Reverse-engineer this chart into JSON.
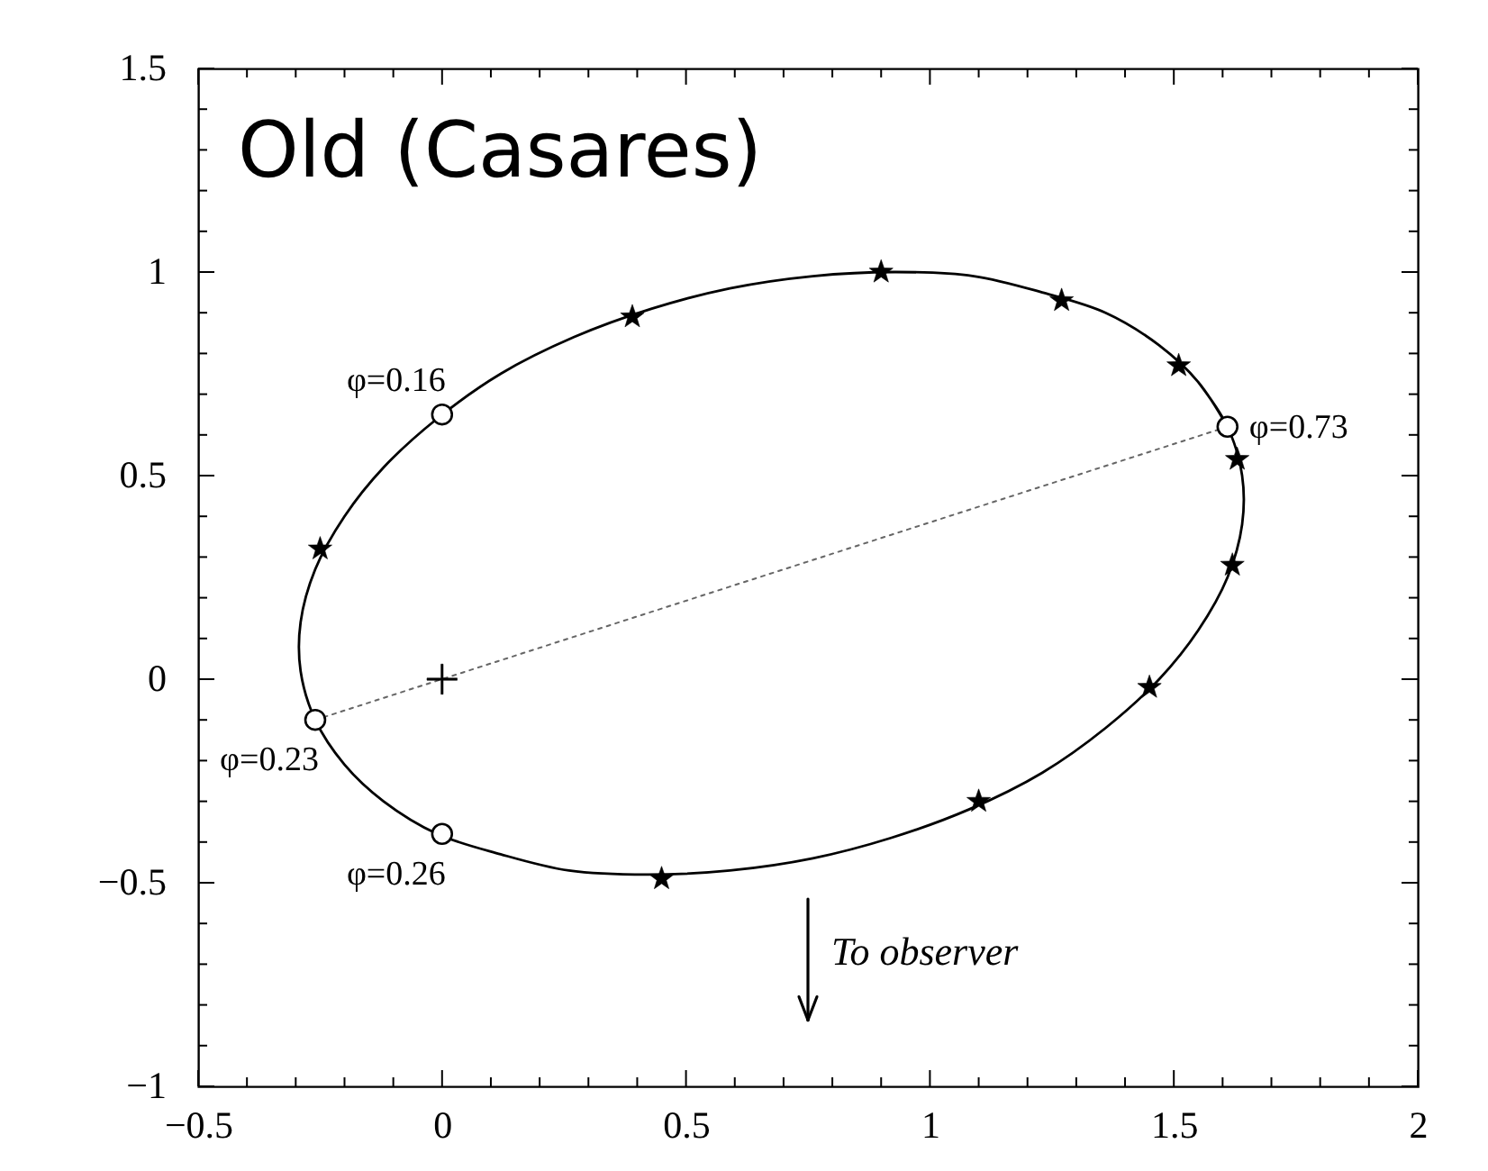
{
  "chart_data": {
    "type": "line",
    "title": "Old (Casares)",
    "xlim": [
      -0.5,
      2
    ],
    "ylim": [
      -1,
      1.5
    ],
    "xticks": [
      -0.5,
      {
        "value": -0.4,
        "label": null
      },
      {
        "value": -0.3,
        "label": null
      },
      {
        "value": -0.2,
        "label": null
      },
      {
        "value": -0.1,
        "label": null
      },
      0,
      {
        "value": 0.1,
        "label": null
      },
      {
        "value": 0.2,
        "label": null
      },
      {
        "value": 0.3,
        "label": null
      },
      {
        "value": 0.4,
        "label": null
      },
      0.5,
      {
        "value": 0.6,
        "label": null
      },
      {
        "value": 0.7,
        "label": null
      },
      {
        "value": 0.8,
        "label": null
      },
      {
        "value": 0.9,
        "label": null
      },
      1,
      {
        "value": 1.1,
        "label": null
      },
      {
        "value": 1.2,
        "label": null
      },
      {
        "value": 1.3,
        "label": null
      },
      {
        "value": 1.4,
        "label": null
      },
      1.5,
      {
        "value": 1.6,
        "label": null
      },
      {
        "value": 1.7,
        "label": null
      },
      {
        "value": 1.8,
        "label": null
      },
      {
        "value": 1.9,
        "label": null
      },
      2
    ],
    "yticks": [
      -1,
      {
        "value": -0.9,
        "label": null
      },
      {
        "value": -0.8,
        "label": null
      },
      {
        "value": -0.7,
        "label": null
      },
      {
        "value": -0.6,
        "label": null
      },
      -0.5,
      {
        "value": -0.4,
        "label": null
      },
      {
        "value": -0.3,
        "label": null
      },
      {
        "value": -0.2,
        "label": null
      },
      {
        "value": -0.1,
        "label": null
      },
      0,
      {
        "value": 0.1,
        "label": null
      },
      {
        "value": 0.2,
        "label": null
      },
      {
        "value": 0.3,
        "label": null
      },
      {
        "value": 0.4,
        "label": null
      },
      0.5,
      {
        "value": 0.6,
        "label": null
      },
      {
        "value": 0.7,
        "label": null
      },
      {
        "value": 0.8,
        "label": null
      },
      {
        "value": 0.9,
        "label": null
      },
      1,
      {
        "value": 1.1,
        "label": null
      },
      {
        "value": 1.2,
        "label": null
      },
      {
        "value": 1.3,
        "label": null
      },
      {
        "value": 1.4,
        "label": null
      },
      1.5
    ],
    "series": [
      {
        "color": "#000000",
        "line_style": "solid",
        "x": [
          1.61,
          1.55,
          1.47,
          1.36,
          1.23,
          1.09,
          0.93,
          0.76,
          0.59,
          0.43,
          0.27,
          0.12,
          -0.01,
          -0.12,
          -0.2,
          -0.26,
          -0.29,
          -0.29,
          -0.26,
          -0.2,
          -0.12,
          -0.01,
          0.12,
          0.26,
          0.42,
          0.59,
          0.76,
          0.92,
          1.08,
          1.23,
          1.36,
          1.47,
          1.55,
          1.61,
          1.64,
          1.64,
          1.61,
          1.55
        ],
        "values": [
          0.62,
          0.73,
          0.82,
          0.9,
          0.95,
          0.99,
          1.0,
          0.99,
          0.96,
          0.91,
          0.84,
          0.75,
          0.64,
          0.52,
          0.4,
          0.27,
          0.14,
          0.02,
          -0.1,
          -0.21,
          -0.3,
          -0.38,
          -0.43,
          -0.47,
          -0.48,
          -0.47,
          -0.44,
          -0.39,
          -0.32,
          -0.23,
          -0.12,
          0.0,
          0.12,
          0.25,
          0.38,
          0.5,
          0.62,
          0.73
        ]
      },
      {
        "type": "line",
        "color": "#666666",
        "line_style": "dotted",
        "x": [
          -0.26,
          1.61
        ],
        "values": [
          -0.1,
          0.62
        ]
      },
      {
        "type": "scatter",
        "color": "#000000",
        "marker": "star",
        "x": [
          -0.25,
          0.39,
          0.9,
          1.27,
          1.51,
          1.63,
          1.62,
          1.45,
          1.1,
          0.45
        ],
        "values": [
          0.32,
          0.89,
          1.0,
          0.93,
          0.77,
          0.54,
          0.28,
          -0.02,
          -0.3,
          -0.49
        ]
      },
      {
        "type": "scatter",
        "color": "#000000",
        "marker": "circle",
        "x": [
          0.0,
          1.61,
          -0.26,
          0.0
        ],
        "values": [
          0.65,
          0.62,
          -0.1,
          -0.38
        ]
      },
      {
        "type": "scatter",
        "color": "#000000",
        "marker": "cross",
        "x": [
          0
        ],
        "values": [
          0
        ]
      }
    ],
    "annotations": [
      {
        "text": "φ=0.16",
        "x": 0.0,
        "y": 0.65
      },
      {
        "text": "φ=0.73",
        "x": 1.61,
        "y": 0.62
      },
      {
        "text": "φ=0.23",
        "x": -0.26,
        "y": -0.1
      },
      {
        "text": "φ=0.26",
        "x": 0.0,
        "y": -0.38
      },
      "To observer"
    ]
  }
}
